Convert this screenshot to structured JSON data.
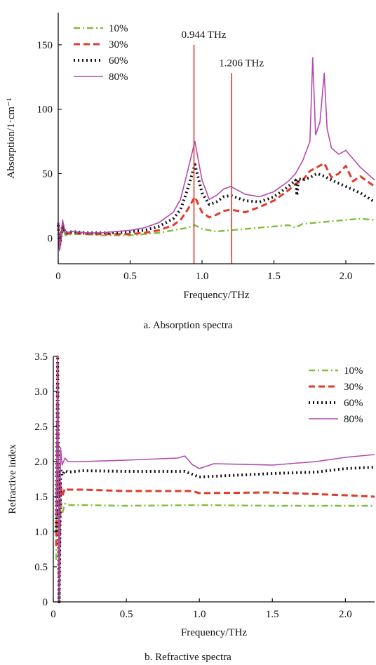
{
  "chart_data": [
    {
      "type": "line",
      "caption": "a. Absorption spectra",
      "xlabel": "Frequency/THz",
      "ylabel": "Absorption/1·cm⁻¹",
      "xlim": [
        0,
        2.2
      ],
      "ylim": [
        -20,
        175
      ],
      "xticks": [
        "0",
        "0.5",
        "1.0",
        "1.5",
        "2.0"
      ],
      "yticks": [
        "0",
        "50",
        "100",
        "150"
      ],
      "legend_position": "top-left",
      "annotations": [
        {
          "text": "0.944 THz",
          "x": 0.944,
          "y_top": 150,
          "color": "#e23a2a"
        },
        {
          "text": "1.206 THz",
          "x": 1.206,
          "y_top": 128,
          "color": "#e23a2a"
        }
      ],
      "series": [
        {
          "name": "10%",
          "color": "#7dbf3a",
          "dash": "dashdot",
          "x": [
            0,
            0.01,
            0.03,
            0.05,
            0.1,
            0.2,
            0.3,
            0.4,
            0.5,
            0.6,
            0.7,
            0.8,
            0.9,
            0.95,
            1.0,
            1.1,
            1.2,
            1.3,
            1.4,
            1.5,
            1.6,
            1.65,
            1.7,
            1.8,
            1.9,
            2.0,
            2.1,
            2.2
          ],
          "y": [
            10,
            -5,
            8,
            2,
            3,
            3,
            2,
            2,
            2,
            3,
            4,
            6,
            8,
            10,
            7,
            5,
            6,
            7,
            8,
            9,
            10,
            8,
            11,
            12,
            13,
            14,
            15,
            14
          ]
        },
        {
          "name": "30%",
          "color": "#e23a2a",
          "dash": "dashed",
          "x": [
            0,
            0.01,
            0.03,
            0.05,
            0.1,
            0.2,
            0.3,
            0.4,
            0.5,
            0.6,
            0.7,
            0.8,
            0.85,
            0.9,
            0.95,
            1.0,
            1.05,
            1.1,
            1.15,
            1.2,
            1.25,
            1.3,
            1.4,
            1.5,
            1.6,
            1.65,
            1.7,
            1.75,
            1.8,
            1.85,
            1.9,
            1.95,
            2.0,
            2.05,
            2.1,
            2.2
          ],
          "y": [
            12,
            -8,
            10,
            3,
            4,
            3,
            3,
            3,
            3,
            4,
            6,
            10,
            14,
            22,
            32,
            20,
            16,
            18,
            21,
            22,
            21,
            20,
            24,
            29,
            37,
            42,
            45,
            52,
            55,
            58,
            47,
            50,
            56,
            44,
            48,
            40
          ]
        },
        {
          "name": "60%",
          "color": "#111111",
          "dash": "dotted",
          "x": [
            0,
            0.01,
            0.03,
            0.05,
            0.1,
            0.2,
            0.3,
            0.4,
            0.5,
            0.6,
            0.7,
            0.8,
            0.85,
            0.9,
            0.95,
            1.0,
            1.05,
            1.1,
            1.15,
            1.2,
            1.25,
            1.3,
            1.4,
            1.5,
            1.6,
            1.65,
            1.66,
            1.67,
            1.7,
            1.75,
            1.8,
            1.85,
            1.9,
            2.0,
            2.1,
            2.2
          ],
          "y": [
            10,
            -6,
            10,
            4,
            5,
            4,
            4,
            4,
            5,
            6,
            9,
            15,
            22,
            38,
            57,
            35,
            26,
            28,
            32,
            33,
            31,
            29,
            28,
            32,
            40,
            45,
            33,
            46,
            45,
            47,
            50,
            48,
            45,
            40,
            35,
            28
          ]
        },
        {
          "name": "80%",
          "color": "#b24ab0",
          "dash": "solid",
          "x": [
            0,
            0.01,
            0.03,
            0.05,
            0.1,
            0.2,
            0.3,
            0.4,
            0.5,
            0.6,
            0.7,
            0.8,
            0.85,
            0.9,
            0.95,
            1.0,
            1.05,
            1.1,
            1.15,
            1.2,
            1.25,
            1.3,
            1.4,
            1.5,
            1.6,
            1.65,
            1.7,
            1.75,
            1.77,
            1.79,
            1.82,
            1.85,
            1.87,
            1.9,
            1.95,
            2.0,
            2.1,
            2.2
          ],
          "y": [
            12,
            -10,
            14,
            4,
            5,
            4,
            4,
            5,
            6,
            8,
            12,
            20,
            30,
            52,
            75,
            45,
            30,
            33,
            38,
            40,
            37,
            34,
            32,
            36,
            44,
            50,
            60,
            75,
            140,
            80,
            90,
            128,
            85,
            70,
            65,
            68,
            55,
            45
          ]
        }
      ]
    },
    {
      "type": "line",
      "caption": "b. Refractive spectra",
      "xlabel": "Frequency/THz",
      "ylabel": "Refractive index",
      "xlim": [
        0,
        2.2
      ],
      "ylim": [
        0,
        3.5
      ],
      "xticks": [
        "0",
        "0.5",
        "1.0",
        "1.5",
        "2.0"
      ],
      "yticks": [
        "0",
        "0.5",
        "1.0",
        "1.5",
        "2.0",
        "2.5",
        "3.0",
        "3.5"
      ],
      "legend_position": "top-right",
      "series": [
        {
          "name": "10%",
          "color": "#7dbf3a",
          "dash": "dashdot",
          "x": [
            0.02,
            0.03,
            0.04,
            0.05,
            0.06,
            0.08,
            0.1,
            0.2,
            0.5,
            1.0,
            1.5,
            2.0,
            2.2
          ],
          "y": [
            0.6,
            3.5,
            0.0,
            1.5,
            1.25,
            1.4,
            1.38,
            1.38,
            1.37,
            1.38,
            1.37,
            1.37,
            1.37
          ]
        },
        {
          "name": "30%",
          "color": "#e23a2a",
          "dash": "dashed",
          "x": [
            0.02,
            0.03,
            0.04,
            0.05,
            0.06,
            0.08,
            0.1,
            0.2,
            0.5,
            0.95,
            1.0,
            1.5,
            2.0,
            2.2
          ],
          "y": [
            0.8,
            3.5,
            0.0,
            1.7,
            1.5,
            1.62,
            1.6,
            1.6,
            1.58,
            1.58,
            1.55,
            1.56,
            1.52,
            1.5
          ]
        },
        {
          "name": "60%",
          "color": "#111111",
          "dash": "dotted",
          "x": [
            0.02,
            0.03,
            0.04,
            0.05,
            0.06,
            0.08,
            0.1,
            0.2,
            0.5,
            0.9,
            1.0,
            1.5,
            1.8,
            2.0,
            2.2
          ],
          "y": [
            1.0,
            3.5,
            0.0,
            1.9,
            1.8,
            1.87,
            1.85,
            1.87,
            1.86,
            1.86,
            1.78,
            1.83,
            1.85,
            1.9,
            1.92
          ]
        },
        {
          "name": "80%",
          "color": "#b24ab0",
          "dash": "solid",
          "x": [
            0.02,
            0.03,
            0.04,
            0.05,
            0.06,
            0.08,
            0.1,
            0.2,
            0.5,
            0.85,
            0.9,
            0.95,
            1.0,
            1.1,
            1.5,
            1.8,
            2.0,
            2.2
          ],
          "y": [
            1.2,
            3.5,
            0.0,
            2.2,
            1.95,
            2.05,
            2.0,
            2.0,
            2.02,
            2.05,
            2.08,
            1.96,
            1.9,
            1.97,
            1.95,
            2.0,
            2.06,
            2.1
          ]
        }
      ]
    }
  ]
}
